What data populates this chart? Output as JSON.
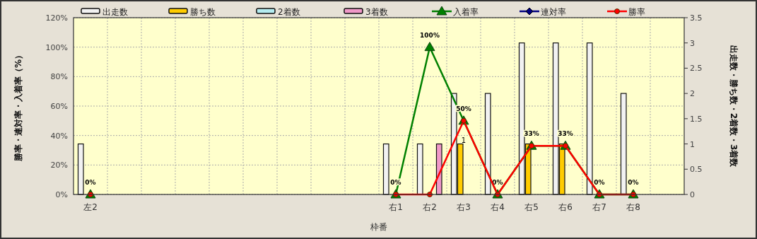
{
  "chart_data": {
    "type": "bar",
    "xlabel": "枠番",
    "ylabel": "勝率・連対率・入着率（%）",
    "y2label": "出走数・勝ち数・2着数・3着数",
    "categories": [
      "左2",
      null,
      null,
      null,
      null,
      null,
      null,
      null,
      null,
      "右1",
      "右2",
      "右3",
      "右4",
      "右5",
      "右6",
      "右7",
      "右8",
      null
    ],
    "series": [
      {
        "name": "出走数",
        "axis": "y2",
        "color": "#f2f2f2",
        "values": [
          1,
          null,
          null,
          null,
          null,
          null,
          null,
          null,
          null,
          1,
          1,
          2,
          2,
          3,
          3,
          3,
          2,
          null
        ]
      },
      {
        "name": "勝ち数",
        "axis": "y2",
        "color": "#ffcc00",
        "values": [
          0,
          null,
          null,
          null,
          null,
          null,
          null,
          null,
          null,
          0,
          0,
          1,
          0,
          1,
          1,
          0,
          0,
          null
        ]
      },
      {
        "name": "2着数",
        "axis": "y2",
        "color": "#b4ecf0",
        "values": [
          0,
          null,
          null,
          null,
          null,
          null,
          null,
          null,
          null,
          0,
          0,
          0,
          0,
          0,
          0,
          0,
          0,
          null
        ]
      },
      {
        "name": "3着数",
        "axis": "y2",
        "color": "#f098c8",
        "values": [
          0,
          null,
          null,
          null,
          null,
          null,
          null,
          null,
          null,
          0,
          1,
          0,
          0,
          0,
          0,
          0,
          0,
          null
        ]
      },
      {
        "name": "入着率",
        "type": "line",
        "axis": "y",
        "color": "#008000",
        "marker": "triangle",
        "values": [
          0,
          null,
          null,
          null,
          null,
          null,
          null,
          null,
          null,
          0,
          100,
          50,
          0,
          33,
          33,
          0,
          0,
          null
        ],
        "value_labels": [
          "0%",
          null,
          null,
          null,
          null,
          null,
          null,
          null,
          null,
          "0%",
          "100%",
          "50%",
          "0%",
          "33%",
          "33%",
          "0%",
          "0%",
          null
        ]
      },
      {
        "name": "連対率",
        "type": "line",
        "axis": "y",
        "color": "#000080",
        "marker": "diamond",
        "values": [
          null,
          null,
          null,
          null,
          null,
          null,
          null,
          null,
          null,
          null,
          null,
          null,
          null,
          null,
          null,
          null,
          null,
          null
        ]
      },
      {
        "name": "勝率",
        "type": "line",
        "axis": "y",
        "color": "#ff0000",
        "marker": "circle",
        "values": [
          0,
          null,
          null,
          null,
          null,
          null,
          null,
          null,
          null,
          0,
          0,
          50,
          0,
          33,
          33,
          0,
          0,
          null
        ]
      }
    ],
    "ylim": [
      0,
      120
    ],
    "yticks": [
      {
        "value": 0,
        "label": "0%"
      },
      {
        "value": 20,
        "label": "20%"
      },
      {
        "value": 40,
        "label": "40%"
      },
      {
        "value": 60,
        "label": "60%"
      },
      {
        "value": 80,
        "label": "80%"
      },
      {
        "value": 100,
        "label": "100%"
      },
      {
        "value": 120,
        "label": "120%"
      }
    ],
    "y2lim": [
      0,
      3.5
    ],
    "y2ticks": [
      0,
      0.5,
      1,
      1.5,
      2,
      2.5,
      3,
      3.5
    ],
    "annotations": [
      {
        "text": "1",
        "x": "右3",
        "y": 34
      }
    ],
    "grid": true,
    "legend": "top"
  }
}
